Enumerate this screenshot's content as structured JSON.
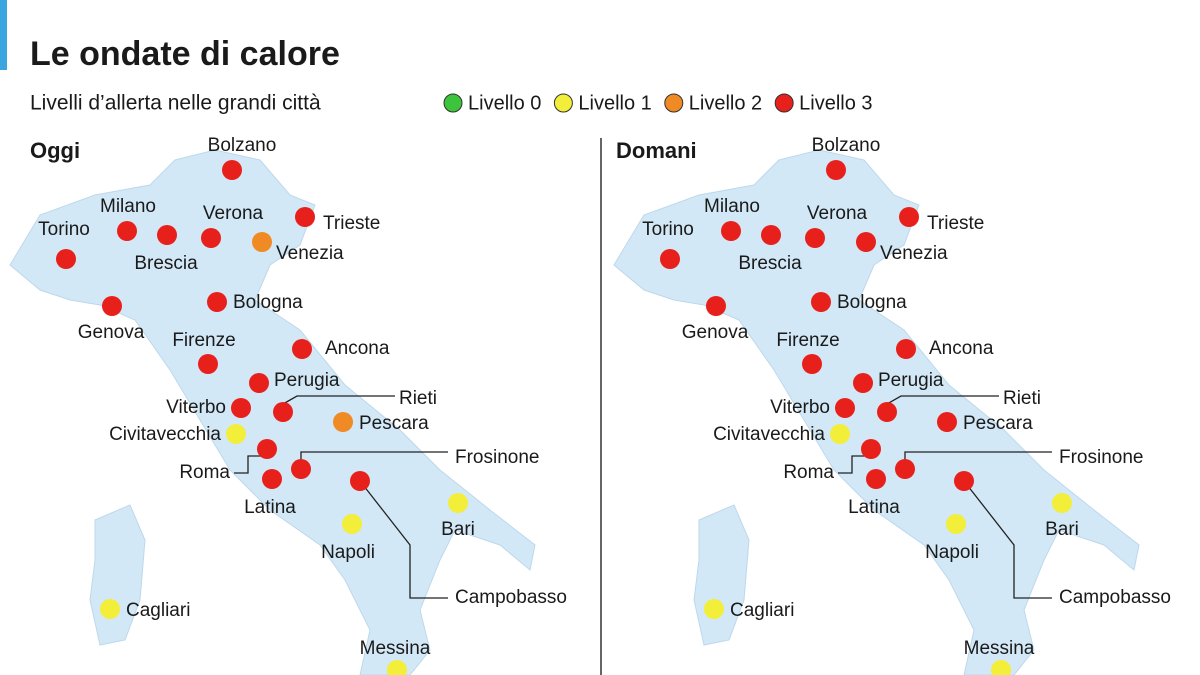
{
  "title": "Le ondate di calore",
  "subtitle": "Livelli d’allerta nelle grandi città",
  "legend": [
    {
      "label": "Livello 0",
      "color": "#3cc43c"
    },
    {
      "label": "Livello 1",
      "color": "#f2ee3a"
    },
    {
      "label": "Livello 2",
      "color": "#f08a24"
    },
    {
      "label": "Livello 3",
      "color": "#e8201c"
    }
  ],
  "maps": [
    {
      "title": "Oggi",
      "cities": [
        {
          "name": "Bolzano",
          "level": 3
        },
        {
          "name": "Trieste",
          "level": 3
        },
        {
          "name": "Verona",
          "level": 3
        },
        {
          "name": "Venezia",
          "level": 2
        },
        {
          "name": "Milano",
          "level": 3
        },
        {
          "name": "Brescia",
          "level": 3
        },
        {
          "name": "Torino",
          "level": 3
        },
        {
          "name": "Genova",
          "level": 3
        },
        {
          "name": "Bologna",
          "level": 3
        },
        {
          "name": "Firenze",
          "level": 3
        },
        {
          "name": "Ancona",
          "level": 3
        },
        {
          "name": "Perugia",
          "level": 3
        },
        {
          "name": "Viterbo",
          "level": 3
        },
        {
          "name": "Rieti",
          "level": 3
        },
        {
          "name": "Pescara",
          "level": 2
        },
        {
          "name": "Civitavecchia",
          "level": 1
        },
        {
          "name": "Roma",
          "level": 3
        },
        {
          "name": "Latina",
          "level": 3
        },
        {
          "name": "Frosinone",
          "level": 3
        },
        {
          "name": "Campobasso",
          "level": 3
        },
        {
          "name": "Bari",
          "level": 1
        },
        {
          "name": "Napoli",
          "level": 1
        },
        {
          "name": "Cagliari",
          "level": 1
        },
        {
          "name": "Messina",
          "level": 1
        }
      ]
    },
    {
      "title": "Domani",
      "cities": [
        {
          "name": "Bolzano",
          "level": 3
        },
        {
          "name": "Trieste",
          "level": 3
        },
        {
          "name": "Verona",
          "level": 3
        },
        {
          "name": "Venezia",
          "level": 3
        },
        {
          "name": "Milano",
          "level": 3
        },
        {
          "name": "Brescia",
          "level": 3
        },
        {
          "name": "Torino",
          "level": 3
        },
        {
          "name": "Genova",
          "level": 3
        },
        {
          "name": "Bologna",
          "level": 3
        },
        {
          "name": "Firenze",
          "level": 3
        },
        {
          "name": "Ancona",
          "level": 3
        },
        {
          "name": "Perugia",
          "level": 3
        },
        {
          "name": "Viterbo",
          "level": 3
        },
        {
          "name": "Rieti",
          "level": 3
        },
        {
          "name": "Pescara",
          "level": 3
        },
        {
          "name": "Civitavecchia",
          "level": 1
        },
        {
          "name": "Roma",
          "level": 3
        },
        {
          "name": "Latina",
          "level": 3
        },
        {
          "name": "Frosinone",
          "level": 3
        },
        {
          "name": "Campobasso",
          "level": 3
        },
        {
          "name": "Bari",
          "level": 1
        },
        {
          "name": "Napoli",
          "level": 1
        },
        {
          "name": "Cagliari",
          "level": 1
        },
        {
          "name": "Messina",
          "level": 1
        }
      ]
    }
  ]
}
